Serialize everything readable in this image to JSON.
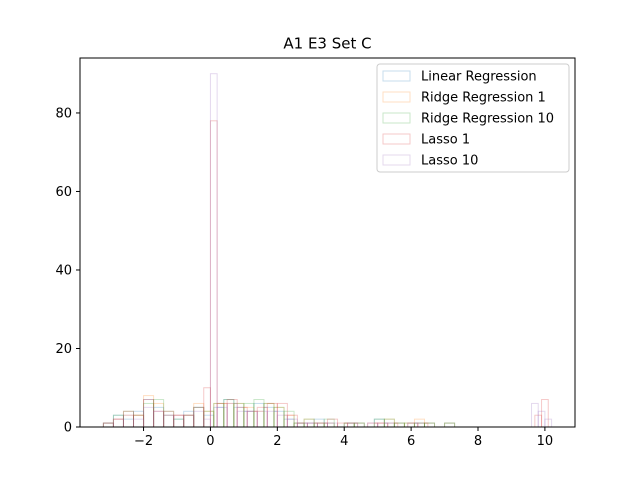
{
  "chart_data": {
    "type": "histogram",
    "title": "A1 E3 Set C",
    "xlabel": "",
    "ylabel": "",
    "xlim": [
      -3.9,
      10.9
    ],
    "ylim": [
      0,
      94
    ],
    "xticks": [
      -2,
      0,
      2,
      4,
      6,
      8,
      10
    ],
    "yticks": [
      0,
      20,
      40,
      60,
      80
    ],
    "xtick_labels": [
      "−2",
      "0",
      "2",
      "4",
      "6",
      "8",
      "10"
    ],
    "ytick_labels": [
      "0",
      "20",
      "40",
      "60",
      "80"
    ],
    "grid": false,
    "legend_placement": "top-right",
    "histtype": "step",
    "alpha": 0.25,
    "series": [
      {
        "name": "Linear Regression",
        "color": "#1f77b4",
        "bins": [
          [
            -3.2,
            -2.9,
            1
          ],
          [
            -2.9,
            -2.6,
            3
          ],
          [
            -2.6,
            -2.3,
            2
          ],
          [
            -2.3,
            -2.0,
            4
          ],
          [
            -2.0,
            -1.7,
            7
          ],
          [
            -1.7,
            -1.4,
            5
          ],
          [
            -1.4,
            -1.1,
            3
          ],
          [
            -1.1,
            -0.8,
            2
          ],
          [
            -0.8,
            -0.5,
            4
          ],
          [
            -0.5,
            -0.2,
            5
          ],
          [
            -0.2,
            0.1,
            3
          ],
          [
            0.1,
            0.4,
            5
          ],
          [
            0.4,
            0.7,
            7
          ],
          [
            0.7,
            1.0,
            5
          ],
          [
            1.0,
            1.3,
            4
          ],
          [
            1.3,
            1.6,
            6
          ],
          [
            1.6,
            1.9,
            5
          ],
          [
            1.9,
            2.2,
            4
          ],
          [
            2.2,
            2.5,
            2
          ],
          [
            2.5,
            2.8,
            1
          ],
          [
            2.8,
            3.1,
            1
          ],
          [
            3.1,
            3.4,
            2
          ],
          [
            3.4,
            3.7,
            1
          ],
          [
            3.7,
            4.0,
            0
          ],
          [
            4.0,
            4.3,
            1
          ],
          [
            4.3,
            4.6,
            1
          ],
          [
            4.6,
            4.9,
            0
          ],
          [
            4.9,
            5.2,
            2
          ],
          [
            5.2,
            5.5,
            1
          ],
          [
            5.5,
            5.8,
            1
          ],
          [
            5.8,
            6.1,
            0
          ],
          [
            6.1,
            6.4,
            1
          ],
          [
            6.4,
            6.7,
            1
          ],
          [
            6.7,
            7.0,
            0
          ],
          [
            7.0,
            7.3,
            1
          ]
        ]
      },
      {
        "name": "Ridge Regression 1",
        "color": "#ff7f0e",
        "bins": [
          [
            -3.2,
            -2.9,
            1
          ],
          [
            -2.9,
            -2.6,
            2
          ],
          [
            -2.6,
            -2.3,
            3
          ],
          [
            -2.3,
            -2.0,
            3
          ],
          [
            -2.0,
            -1.7,
            8
          ],
          [
            -1.7,
            -1.4,
            6
          ],
          [
            -1.4,
            -1.1,
            3
          ],
          [
            -1.1,
            -0.8,
            3
          ],
          [
            -0.8,
            -0.5,
            3
          ],
          [
            -0.5,
            -0.2,
            6
          ],
          [
            -0.2,
            0.1,
            4
          ],
          [
            0.1,
            0.4,
            6
          ],
          [
            0.4,
            0.7,
            6
          ],
          [
            0.7,
            1.0,
            6
          ],
          [
            1.0,
            1.3,
            5
          ],
          [
            1.3,
            1.6,
            4
          ],
          [
            1.6,
            1.9,
            6
          ],
          [
            1.9,
            2.2,
            5
          ],
          [
            2.2,
            2.5,
            3
          ],
          [
            2.5,
            2.8,
            1
          ],
          [
            2.8,
            3.1,
            2
          ],
          [
            3.1,
            3.4,
            1
          ],
          [
            3.4,
            3.7,
            1
          ],
          [
            3.7,
            4.0,
            0
          ],
          [
            4.0,
            4.3,
            1
          ],
          [
            4.3,
            4.6,
            1
          ],
          [
            4.6,
            4.9,
            0
          ],
          [
            4.9,
            5.2,
            1
          ],
          [
            5.2,
            5.5,
            2
          ],
          [
            5.5,
            5.8,
            1
          ],
          [
            5.8,
            6.1,
            1
          ],
          [
            6.1,
            6.4,
            2
          ],
          [
            6.4,
            6.7,
            1
          ],
          [
            6.7,
            7.0,
            0
          ],
          [
            7.0,
            7.3,
            1
          ]
        ]
      },
      {
        "name": "Ridge Regression 10",
        "color": "#2ca02c",
        "bins": [
          [
            -3.2,
            -2.9,
            1
          ],
          [
            -2.9,
            -2.6,
            3
          ],
          [
            -2.6,
            -2.3,
            4
          ],
          [
            -2.3,
            -2.0,
            3
          ],
          [
            -2.0,
            -1.7,
            6
          ],
          [
            -1.7,
            -1.4,
            7
          ],
          [
            -1.4,
            -1.1,
            4
          ],
          [
            -1.1,
            -0.8,
            2
          ],
          [
            -0.8,
            -0.5,
            3
          ],
          [
            -0.5,
            -0.2,
            5
          ],
          [
            -0.2,
            0.1,
            4
          ],
          [
            0.1,
            0.4,
            6
          ],
          [
            0.4,
            0.7,
            7
          ],
          [
            0.7,
            1.0,
            6
          ],
          [
            1.0,
            1.3,
            6
          ],
          [
            1.3,
            1.6,
            7
          ],
          [
            1.6,
            1.9,
            6
          ],
          [
            1.9,
            2.2,
            5
          ],
          [
            2.2,
            2.5,
            4
          ],
          [
            2.5,
            2.8,
            1
          ],
          [
            2.8,
            3.1,
            2
          ],
          [
            3.1,
            3.4,
            1
          ],
          [
            3.4,
            3.7,
            2
          ],
          [
            3.7,
            4.0,
            0
          ],
          [
            4.0,
            4.3,
            1
          ],
          [
            4.3,
            4.6,
            1
          ],
          [
            4.6,
            4.9,
            0
          ],
          [
            4.9,
            5.2,
            2
          ],
          [
            5.2,
            5.5,
            2
          ],
          [
            5.5,
            5.8,
            1
          ],
          [
            5.8,
            6.1,
            1
          ],
          [
            6.1,
            6.4,
            1
          ],
          [
            6.4,
            6.7,
            1
          ],
          [
            6.7,
            7.0,
            0
          ],
          [
            7.0,
            7.3,
            1
          ]
        ]
      },
      {
        "name": "Lasso 1",
        "color": "#d62728",
        "bins": [
          [
            -3.2,
            -2.9,
            1
          ],
          [
            -2.9,
            -2.6,
            2
          ],
          [
            -2.6,
            -2.3,
            4
          ],
          [
            -2.3,
            -2.0,
            3
          ],
          [
            -2.0,
            -1.7,
            7
          ],
          [
            -1.7,
            -1.4,
            4
          ],
          [
            -1.4,
            -1.1,
            4
          ],
          [
            -1.1,
            -0.8,
            3
          ],
          [
            -0.8,
            -0.5,
            3
          ],
          [
            -0.5,
            -0.2,
            5
          ],
          [
            -0.2,
            0.0,
            10
          ],
          [
            0.0,
            0.2,
            78
          ],
          [
            0.2,
            0.5,
            6
          ],
          [
            0.5,
            0.8,
            7
          ],
          [
            0.8,
            1.1,
            5
          ],
          [
            1.1,
            1.4,
            4
          ],
          [
            1.4,
            1.7,
            5
          ],
          [
            1.7,
            2.0,
            6
          ],
          [
            2.0,
            2.3,
            6
          ],
          [
            2.3,
            2.6,
            3
          ],
          [
            2.6,
            2.9,
            1
          ],
          [
            2.9,
            3.2,
            1
          ],
          [
            3.2,
            3.5,
            1
          ],
          [
            3.5,
            3.8,
            2
          ],
          [
            3.8,
            4.1,
            1
          ],
          [
            4.1,
            4.4,
            1
          ],
          [
            4.4,
            4.7,
            0
          ],
          [
            4.7,
            5.0,
            1
          ],
          [
            5.0,
            5.3,
            1
          ],
          [
            5.3,
            5.6,
            1
          ],
          [
            5.6,
            5.9,
            0
          ],
          [
            5.9,
            6.2,
            1
          ],
          [
            6.2,
            6.5,
            1
          ],
          [
            6.5,
            6.8,
            0
          ],
          [
            6.8,
            7.1,
            0
          ],
          [
            9.7,
            9.9,
            3
          ],
          [
            9.9,
            10.1,
            7
          ],
          [
            10.1,
            10.3,
            0
          ]
        ]
      },
      {
        "name": "Lasso 10",
        "color": "#9467bd",
        "bins": [
          [
            -3.2,
            -2.9,
            1
          ],
          [
            -2.9,
            -2.6,
            2
          ],
          [
            -2.6,
            -2.3,
            3
          ],
          [
            -2.3,
            -2.0,
            2
          ],
          [
            -2.0,
            -1.7,
            5
          ],
          [
            -1.7,
            -1.4,
            4
          ],
          [
            -1.4,
            -1.1,
            3
          ],
          [
            -1.1,
            -0.8,
            3
          ],
          [
            -0.8,
            -0.5,
            3
          ],
          [
            -0.5,
            -0.2,
            4
          ],
          [
            -0.2,
            0.0,
            2
          ],
          [
            0.0,
            0.2,
            90
          ],
          [
            0.2,
            0.5,
            5
          ],
          [
            0.5,
            0.8,
            6
          ],
          [
            0.8,
            1.1,
            4
          ],
          [
            1.1,
            1.4,
            4
          ],
          [
            1.4,
            1.7,
            4
          ],
          [
            1.7,
            2.0,
            4
          ],
          [
            2.0,
            2.3,
            3
          ],
          [
            2.3,
            2.6,
            2
          ],
          [
            2.6,
            2.9,
            1
          ],
          [
            2.9,
            3.2,
            1
          ],
          [
            3.2,
            3.5,
            1
          ],
          [
            3.5,
            3.8,
            1
          ],
          [
            3.8,
            4.1,
            0
          ],
          [
            4.1,
            4.4,
            1
          ],
          [
            4.4,
            4.7,
            0
          ],
          [
            4.7,
            5.0,
            1
          ],
          [
            5.0,
            5.3,
            1
          ],
          [
            5.3,
            5.6,
            0
          ],
          [
            5.6,
            5.9,
            0
          ],
          [
            5.9,
            6.2,
            1
          ],
          [
            6.2,
            6.5,
            0
          ],
          [
            9.6,
            9.8,
            6
          ],
          [
            9.8,
            10.0,
            4
          ],
          [
            10.0,
            10.2,
            2
          ]
        ]
      }
    ]
  }
}
